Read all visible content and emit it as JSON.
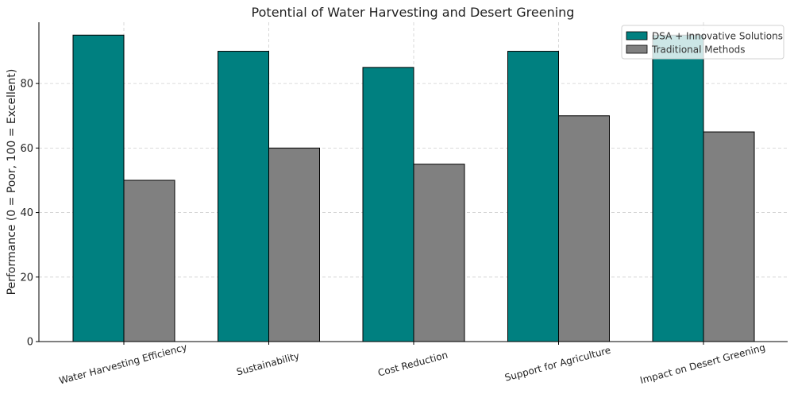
{
  "chart_data": {
    "type": "bar",
    "title": "Potential of Water Harvesting and Desert Greening",
    "xlabel": "",
    "ylabel": "Performance (0 = Poor, 100 = Excellent)",
    "ylim": [
      0,
      100
    ],
    "yticks": [
      0,
      20,
      40,
      60,
      80
    ],
    "categories": [
      "Water Harvesting Efficiency",
      "Sustainability",
      "Cost Reduction",
      "Support for Agriculture",
      "Impact on Desert Greening"
    ],
    "series": [
      {
        "name": "DSA + Innovative Solutions",
        "color": "#008080",
        "values": [
          95,
          90,
          85,
          90,
          95
        ]
      },
      {
        "name": "Traditional Methods",
        "color": "#808080",
        "values": [
          50,
          60,
          55,
          70,
          65
        ]
      }
    ],
    "grid": true,
    "legend_position": "top-right"
  }
}
